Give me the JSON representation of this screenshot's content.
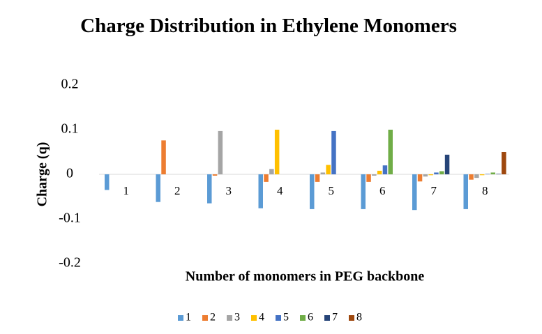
{
  "chart_data": {
    "type": "bar",
    "title": "Charge Distribution in Ethylene Monomers",
    "x_label": "Number of monomers in PEG backbone",
    "y_label": "Charge (q)",
    "categories": [
      "1",
      "2",
      "3",
      "4",
      "5",
      "6",
      "7",
      "8"
    ],
    "series": [
      {
        "name": "1",
        "color": "#5b9bd5",
        "values": [
          -0.035,
          -0.062,
          -0.065,
          -0.076,
          -0.078,
          -0.078,
          -0.08,
          -0.078
        ]
      },
      {
        "name": "2",
        "color": "#ed7d31",
        "values": [
          null,
          0.076,
          -0.003,
          -0.017,
          -0.017,
          -0.017,
          -0.016,
          -0.012
        ]
      },
      {
        "name": "3",
        "color": "#a5a5a5",
        "values": [
          null,
          null,
          0.097,
          0.012,
          0.004,
          -0.003,
          -0.005,
          -0.008
        ]
      },
      {
        "name": "4",
        "color": "#ffc000",
        "values": [
          null,
          null,
          null,
          0.1,
          0.021,
          0.008,
          -0.002,
          -0.002
        ]
      },
      {
        "name": "5",
        "color": "#4472c4",
        "values": [
          null,
          null,
          null,
          null,
          0.097,
          0.02,
          0.004,
          0.001
        ]
      },
      {
        "name": "6",
        "color": "#70ad47",
        "values": [
          null,
          null,
          null,
          null,
          null,
          0.1,
          0.007,
          0.004
        ]
      },
      {
        "name": "7",
        "color": "#264478",
        "values": [
          null,
          null,
          null,
          null,
          null,
          null,
          0.044,
          0.001
        ]
      },
      {
        "name": "8",
        "color": "#9e480e",
        "values": [
          null,
          null,
          null,
          null,
          null,
          null,
          null,
          0.05
        ]
      }
    ],
    "ylim": [
      -0.2,
      0.2
    ],
    "yticks": [
      0.2,
      0.1,
      0,
      -0.1,
      -0.2
    ],
    "grid": false,
    "legend": "bottom"
  }
}
